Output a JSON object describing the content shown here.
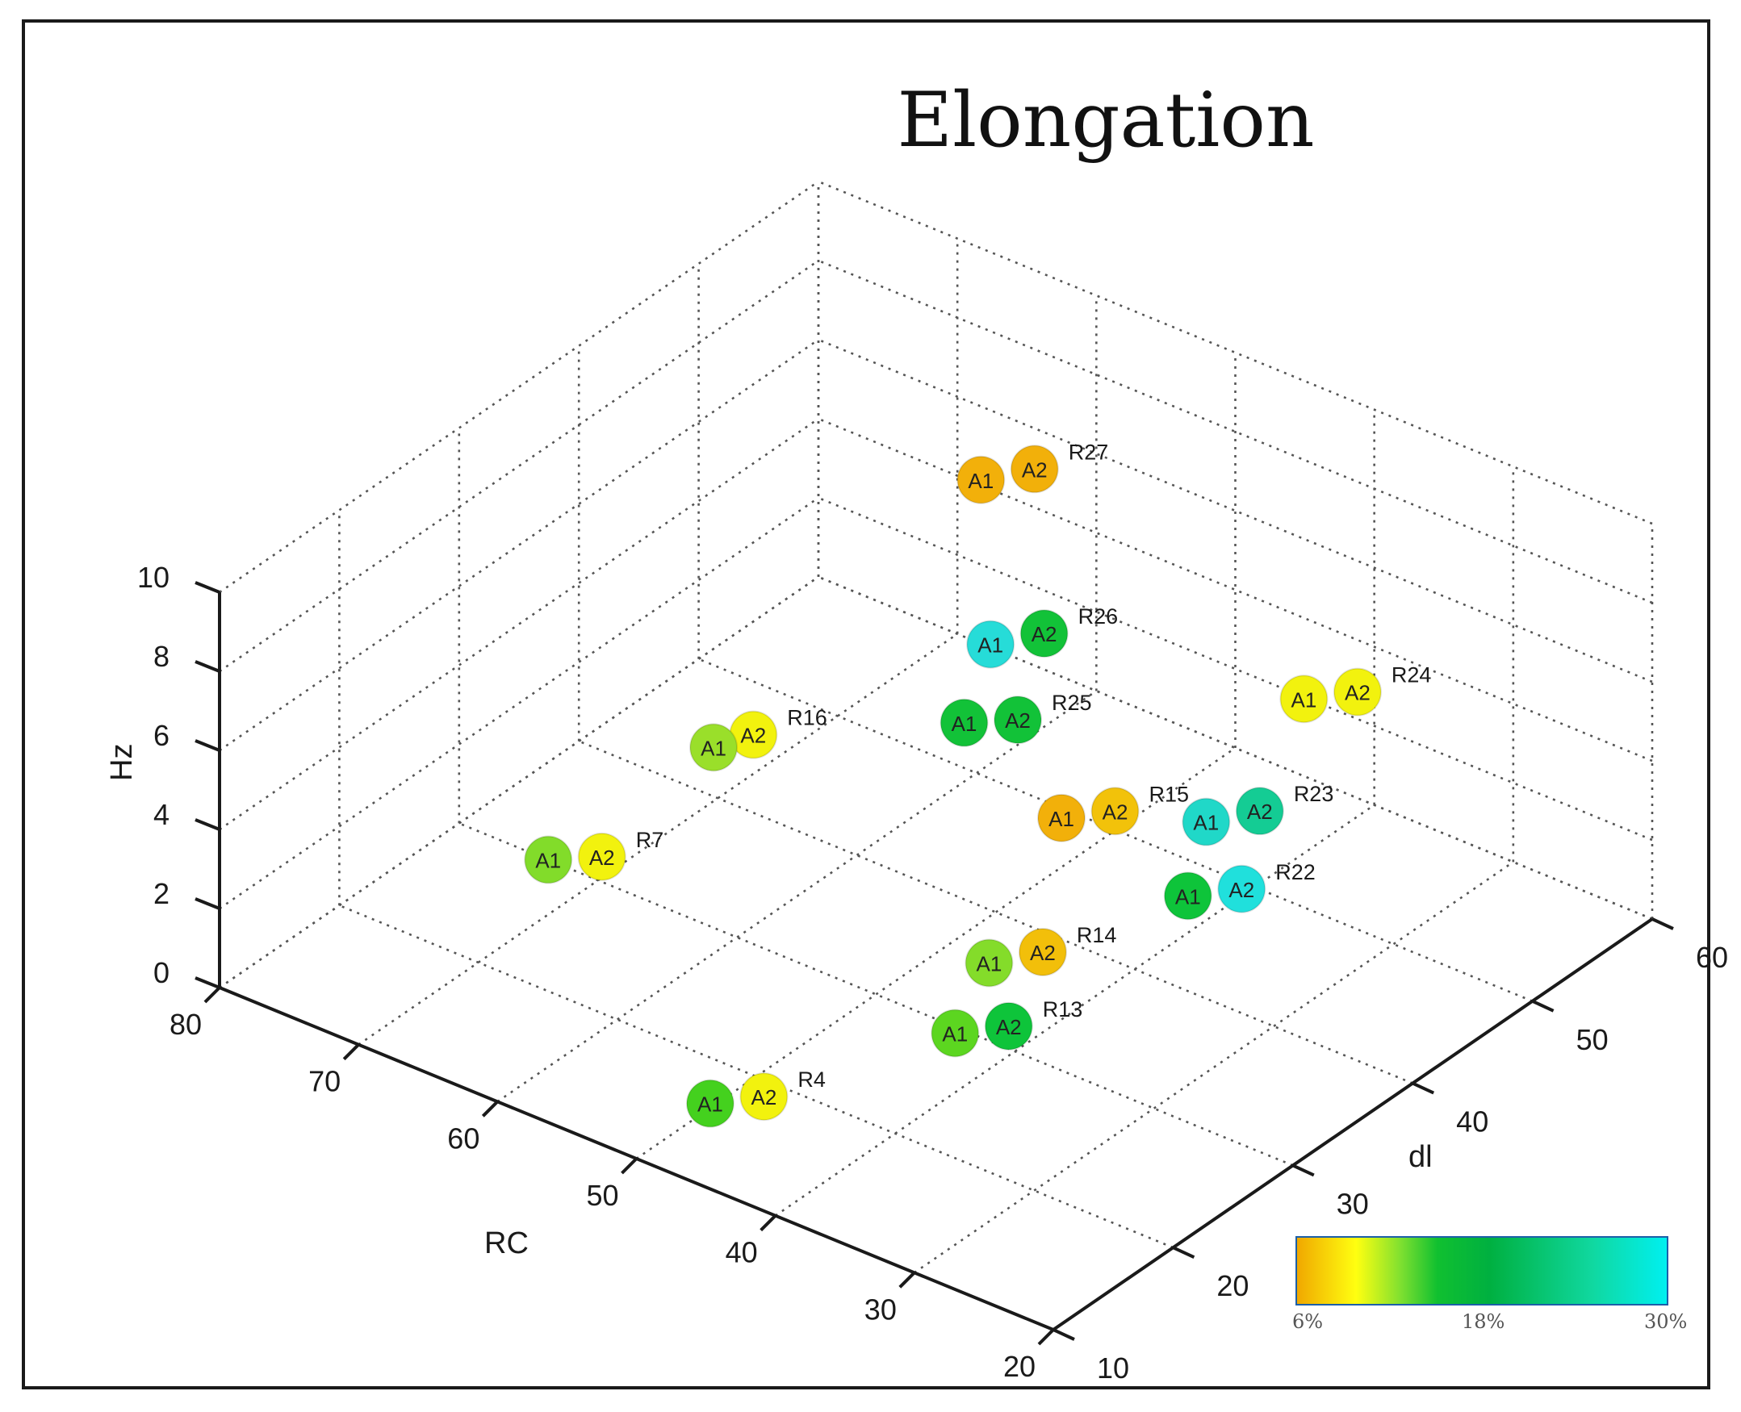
{
  "chart_data": {
    "type": "scatter3d",
    "title": "Elongation",
    "axes": {
      "x": {
        "label": "RC",
        "range": [
          20,
          80
        ],
        "ticks": [
          "20",
          "30",
          "40",
          "50",
          "60",
          "70",
          "80"
        ]
      },
      "y": {
        "label": "dl",
        "range": [
          10,
          60
        ],
        "ticks": [
          "10",
          "20",
          "30",
          "40",
          "50",
          "60"
        ]
      },
      "z": {
        "label": "Hz",
        "range": [
          0,
          10
        ],
        "ticks": [
          "0",
          "2",
          "4",
          "6",
          "8",
          "10"
        ]
      }
    },
    "grid": true,
    "colorbar": {
      "labels": [
        "6%",
        "18%",
        "30%"
      ],
      "range": [
        6,
        30
      ],
      "colors": [
        "#f0a800",
        "#ffff10",
        "#10c030",
        "#00f0f0"
      ]
    },
    "series": [
      {
        "name": "R4",
        "points": [
          {
            "marker": "A1",
            "RC": 49,
            "dl": 15,
            "Hz": 0.5,
            "color": "#44d11e"
          },
          {
            "marker": "A2",
            "RC": 46,
            "dl": 16,
            "Hz": 0.9,
            "color": "#f2f20e"
          }
        ]
      },
      {
        "name": "R7",
        "points": [
          {
            "marker": "A1",
            "RC": 71,
            "dl": 27,
            "Hz": 1.0,
            "color": "#82dc2a"
          },
          {
            "marker": "A2",
            "RC": 68,
            "dl": 28,
            "Hz": 1.3,
            "color": "#f2f20e"
          }
        ]
      },
      {
        "name": "R13",
        "points": [
          {
            "marker": "A1",
            "RC": 40,
            "dl": 25,
            "Hz": 1.5,
            "color": "#5cd620"
          },
          {
            "marker": "A2",
            "RC": 37,
            "dl": 26,
            "Hz": 1.9,
            "color": "#0ec43a"
          }
        ]
      },
      {
        "name": "R14",
        "points": [
          {
            "marker": "A1",
            "RC": 41,
            "dl": 29,
            "Hz": 2.3,
            "color": "#84dc2a"
          },
          {
            "marker": "A2",
            "RC": 38,
            "dl": 30,
            "Hz": 2.8,
            "color": "#f2bf0a"
          }
        ]
      },
      {
        "name": "R16",
        "points": [
          {
            "marker": "A1",
            "RC": 66,
            "dl": 35,
            "Hz": 2.9,
            "color": "#9adf2a"
          },
          {
            "marker": "A2",
            "RC": 64,
            "dl": 36,
            "Hz": 3.3,
            "color": "#f2f20e"
          }
        ]
      },
      {
        "name": "R15",
        "points": [
          {
            "marker": "A1",
            "RC": 47,
            "dl": 42,
            "Hz": 2.4,
            "color": "#f2b00a"
          },
          {
            "marker": "A2",
            "RC": 44,
            "dl": 43,
            "Hz": 2.8,
            "color": "#f2c20a"
          }
        ]
      },
      {
        "name": "R22",
        "points": [
          {
            "marker": "A1",
            "RC": 31,
            "dl": 34,
            "Hz": 4.4,
            "color": "#0ec43a"
          },
          {
            "marker": "A2",
            "RC": 28,
            "dl": 35,
            "Hz": 4.8,
            "color": "#20e0dc"
          }
        ]
      },
      {
        "name": "R23",
        "points": [
          {
            "marker": "A1",
            "RC": 34,
            "dl": 39,
            "Hz": 4.8,
            "color": "#20d8c8"
          },
          {
            "marker": "A2",
            "RC": 31,
            "dl": 40,
            "Hz": 5.3,
            "color": "#14cc94"
          }
        ]
      },
      {
        "name": "R25",
        "points": [
          {
            "marker": "A1",
            "RC": 54,
            "dl": 42,
            "Hz": 3.8,
            "color": "#12c238"
          },
          {
            "marker": "A2",
            "RC": 51,
            "dl": 43,
            "Hz": 4.1,
            "color": "#12c238"
          }
        ]
      },
      {
        "name": "R26",
        "points": [
          {
            "marker": "A1",
            "RC": 59,
            "dl": 50,
            "Hz": 3.4,
            "color": "#26dcd8"
          },
          {
            "marker": "A2",
            "RC": 56,
            "dl": 51,
            "Hz": 3.9,
            "color": "#12c238"
          }
        ]
      },
      {
        "name": "R24",
        "points": [
          {
            "marker": "A1",
            "RC": 33,
            "dl": 46,
            "Hz": 6.6,
            "color": "#f2f20e"
          },
          {
            "marker": "A2",
            "RC": 30,
            "dl": 47,
            "Hz": 7.0,
            "color": "#f2f20e"
          }
        ]
      },
      {
        "name": "R27",
        "points": [
          {
            "marker": "A1",
            "RC": 64,
            "dl": 55,
            "Hz": 5.8,
            "color": "#f2b00a"
          },
          {
            "marker": "A2",
            "RC": 61,
            "dl": 56,
            "Hz": 6.3,
            "color": "#f2b00a"
          }
        ]
      }
    ]
  }
}
